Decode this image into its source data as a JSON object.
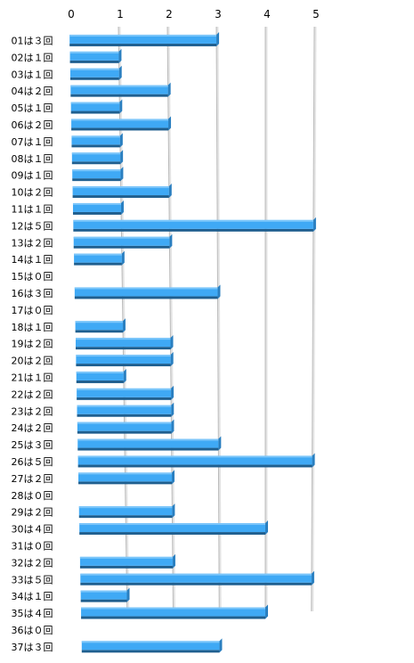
{
  "chart_data": {
    "type": "bar",
    "orientation": "horizontal",
    "grid": true,
    "xlim": [
      0,
      5
    ],
    "xticks": [
      "0",
      "1",
      "2",
      "3",
      "4",
      "5"
    ],
    "bar_color": "#3fa9f5",
    "bar_edge_color": "#1f5f8f",
    "categories": [
      "01は３回",
      "02は１回",
      "03は１回",
      "04は２回",
      "05は１回",
      "06は２回",
      "07は１回",
      "08は１回",
      "09は１回",
      "10は２回",
      "11は１回",
      "12は５回",
      "13は２回",
      "14は１回",
      "15は０回",
      "16は３回",
      "17は０回",
      "18は１回",
      "19は２回",
      "20は２回",
      "21は１回",
      "22は２回",
      "23は２回",
      "24は２回",
      "25は３回",
      "26は５回",
      "27は２回",
      "28は０回",
      "29は２回",
      "30は４回",
      "31は０回",
      "32は２回",
      "33は５回",
      "34は１回",
      "35は４回",
      "36は０回",
      "37は３回"
    ],
    "values": [
      3,
      1,
      1,
      2,
      1,
      2,
      1,
      1,
      1,
      2,
      1,
      5,
      2,
      1,
      0,
      3,
      0,
      1,
      2,
      2,
      1,
      2,
      2,
      2,
      3,
      5,
      2,
      0,
      2,
      4,
      0,
      2,
      5,
      1,
      4,
      0,
      3
    ]
  }
}
